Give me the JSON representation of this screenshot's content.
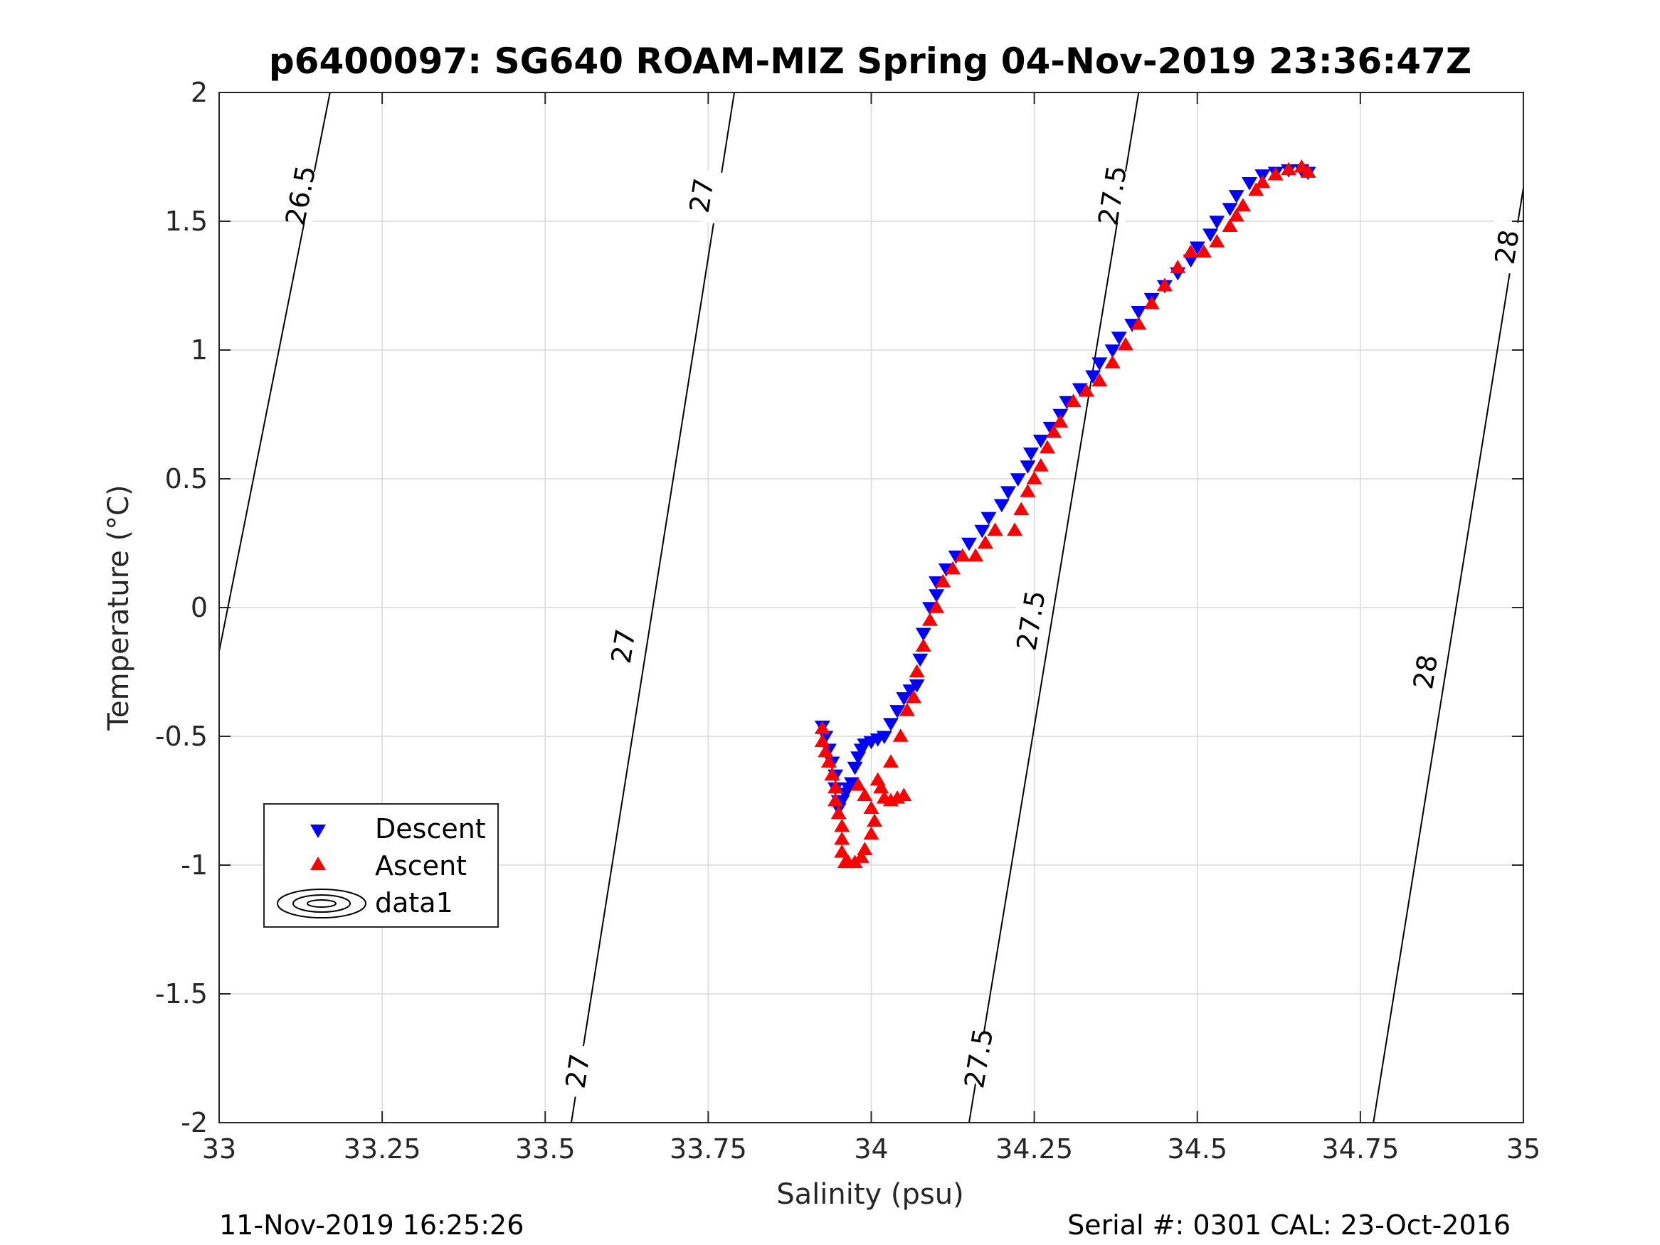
{
  "footer": {
    "left": "11-Nov-2019 16:25:26",
    "right": "Serial #: 0301  CAL: 23-Oct-2016"
  },
  "chart_data": {
    "type": "scatter",
    "title": "p6400097: SG640 ROAM-MIZ Spring 04-Nov-2019 23:36:47Z",
    "xlabel": "Salinity (psu)",
    "ylabel": "Temperature (°C)",
    "xlim": [
      33,
      35
    ],
    "ylim": [
      -2,
      2
    ],
    "x_ticks": [
      33,
      33.25,
      33.5,
      33.75,
      34,
      34.25,
      34.5,
      34.75,
      35
    ],
    "x_tick_labels": [
      "33",
      "33.25",
      "33.5",
      "33.75",
      "34",
      "34.25",
      "34.5",
      "34.75",
      "35"
    ],
    "y_ticks": [
      -2,
      -1.5,
      -1,
      -0.5,
      0,
      0.5,
      1,
      1.5,
      2
    ],
    "y_tick_labels": [
      "-2",
      "-1.5",
      "-1",
      "-0.5",
      "0",
      "0.5",
      "1",
      "1.5",
      "2"
    ],
    "grid": true,
    "legend_position": "lower-left",
    "legend": [
      "Descent",
      "Ascent",
      "data1"
    ],
    "colors": {
      "descent": "#0000ff",
      "ascent": "#ff0000",
      "contour": "#000000",
      "grid": "#d9d9d9"
    },
    "series": [
      {
        "name": "Descent",
        "marker": "triangle-down",
        "points": [
          [
            33.925,
            -0.46
          ],
          [
            33.93,
            -0.5
          ],
          [
            33.935,
            -0.55
          ],
          [
            33.94,
            -0.6
          ],
          [
            33.945,
            -0.65
          ],
          [
            33.945,
            -0.7
          ],
          [
            33.95,
            -0.75
          ],
          [
            33.95,
            -0.78
          ],
          [
            33.955,
            -0.75
          ],
          [
            33.96,
            -0.72
          ],
          [
            33.965,
            -0.7
          ],
          [
            33.97,
            -0.68
          ],
          [
            33.975,
            -0.62
          ],
          [
            33.98,
            -0.58
          ],
          [
            33.985,
            -0.55
          ],
          [
            33.99,
            -0.53
          ],
          [
            34.0,
            -0.52
          ],
          [
            34.01,
            -0.51
          ],
          [
            34.02,
            -0.5
          ],
          [
            34.03,
            -0.45
          ],
          [
            34.04,
            -0.4
          ],
          [
            34.05,
            -0.35
          ],
          [
            34.06,
            -0.32
          ],
          [
            34.07,
            -0.3
          ],
          [
            34.075,
            -0.2
          ],
          [
            34.08,
            -0.1
          ],
          [
            34.09,
            0.0
          ],
          [
            34.1,
            0.05
          ],
          [
            34.1,
            0.1
          ],
          [
            34.115,
            0.15
          ],
          [
            34.13,
            0.2
          ],
          [
            34.15,
            0.25
          ],
          [
            34.17,
            0.3
          ],
          [
            34.18,
            0.35
          ],
          [
            34.2,
            0.4
          ],
          [
            34.21,
            0.45
          ],
          [
            34.225,
            0.5
          ],
          [
            34.24,
            0.55
          ],
          [
            34.245,
            0.6
          ],
          [
            34.26,
            0.65
          ],
          [
            34.275,
            0.7
          ],
          [
            34.29,
            0.75
          ],
          [
            34.3,
            0.8
          ],
          [
            34.32,
            0.85
          ],
          [
            34.34,
            0.9
          ],
          [
            34.35,
            0.95
          ],
          [
            34.37,
            1.0
          ],
          [
            34.38,
            1.05
          ],
          [
            34.4,
            1.1
          ],
          [
            34.41,
            1.15
          ],
          [
            34.43,
            1.2
          ],
          [
            34.45,
            1.25
          ],
          [
            34.47,
            1.3
          ],
          [
            34.49,
            1.35
          ],
          [
            34.5,
            1.4
          ],
          [
            34.52,
            1.45
          ],
          [
            34.53,
            1.5
          ],
          [
            34.55,
            1.55
          ],
          [
            34.56,
            1.6
          ],
          [
            34.58,
            1.65
          ],
          [
            34.6,
            1.68
          ],
          [
            34.62,
            1.69
          ],
          [
            34.64,
            1.7
          ],
          [
            34.66,
            1.7
          ],
          [
            34.67,
            1.69
          ]
        ]
      },
      {
        "name": "Ascent",
        "marker": "triangle-up",
        "points": [
          [
            33.925,
            -0.47
          ],
          [
            33.925,
            -0.52
          ],
          [
            33.93,
            -0.56
          ],
          [
            33.935,
            -0.6
          ],
          [
            33.94,
            -0.65
          ],
          [
            33.945,
            -0.7
          ],
          [
            33.945,
            -0.75
          ],
          [
            33.95,
            -0.8
          ],
          [
            33.955,
            -0.85
          ],
          [
            33.955,
            -0.9
          ],
          [
            33.955,
            -0.95
          ],
          [
            33.96,
            -0.99
          ],
          [
            33.965,
            -0.99
          ],
          [
            33.975,
            -0.99
          ],
          [
            33.985,
            -0.97
          ],
          [
            33.99,
            -0.94
          ],
          [
            34.0,
            -0.88
          ],
          [
            34.005,
            -0.83
          ],
          [
            34.0,
            -0.78
          ],
          [
            33.99,
            -0.73
          ],
          [
            33.98,
            -0.69
          ],
          [
            34.01,
            -0.67
          ],
          [
            34.015,
            -0.7
          ],
          [
            34.02,
            -0.74
          ],
          [
            34.03,
            -0.75
          ],
          [
            34.04,
            -0.74
          ],
          [
            34.05,
            -0.73
          ],
          [
            34.03,
            -0.6
          ],
          [
            34.045,
            -0.5
          ],
          [
            34.055,
            -0.4
          ],
          [
            34.065,
            -0.35
          ],
          [
            34.07,
            -0.25
          ],
          [
            34.08,
            -0.15
          ],
          [
            34.09,
            -0.05
          ],
          [
            34.1,
            0.0
          ],
          [
            34.11,
            0.1
          ],
          [
            34.125,
            0.15
          ],
          [
            34.14,
            0.2
          ],
          [
            34.16,
            0.2
          ],
          [
            34.175,
            0.25
          ],
          [
            34.19,
            0.3
          ],
          [
            34.22,
            0.3
          ],
          [
            34.23,
            0.38
          ],
          [
            34.24,
            0.45
          ],
          [
            34.25,
            0.5
          ],
          [
            34.26,
            0.55
          ],
          [
            34.27,
            0.62
          ],
          [
            34.28,
            0.68
          ],
          [
            34.29,
            0.72
          ],
          [
            34.31,
            0.8
          ],
          [
            34.33,
            0.84
          ],
          [
            34.35,
            0.88
          ],
          [
            34.37,
            0.95
          ],
          [
            34.39,
            1.02
          ],
          [
            34.41,
            1.1
          ],
          [
            34.43,
            1.18
          ],
          [
            34.45,
            1.25
          ],
          [
            34.47,
            1.32
          ],
          [
            34.49,
            1.38
          ],
          [
            34.51,
            1.38
          ],
          [
            34.53,
            1.42
          ],
          [
            34.55,
            1.48
          ],
          [
            34.56,
            1.52
          ],
          [
            34.57,
            1.56
          ],
          [
            34.59,
            1.62
          ],
          [
            34.6,
            1.65
          ],
          [
            34.62,
            1.68
          ],
          [
            34.64,
            1.7
          ],
          [
            34.66,
            1.71
          ],
          [
            34.67,
            1.69
          ]
        ]
      }
    ],
    "contours": [
      {
        "level": "26.5",
        "line": [
          [
            33.0,
            -0.17
          ],
          [
            33.17,
            2.0
          ]
        ],
        "labels": [
          [
            33.125,
            1.6
          ]
        ]
      },
      {
        "level": "27",
        "line": [
          [
            33.54,
            -2.0
          ],
          [
            33.79,
            2.0
          ]
        ],
        "labels": [
          [
            33.55,
            -1.8
          ],
          [
            33.62,
            -0.15
          ],
          [
            33.74,
            1.6
          ]
        ]
      },
      {
        "level": "27.5",
        "line": [
          [
            34.15,
            -2.0
          ],
          [
            34.41,
            2.0
          ]
        ],
        "labels": [
          [
            34.165,
            -1.75
          ],
          [
            34.245,
            -0.05
          ],
          [
            34.37,
            1.6
          ]
        ]
      },
      {
        "level": "28",
        "line": [
          [
            34.77,
            -2.0
          ],
          [
            35.0,
            1.63
          ]
        ],
        "labels": [
          [
            34.85,
            -0.25
          ],
          [
            34.975,
            1.4
          ]
        ]
      }
    ]
  }
}
